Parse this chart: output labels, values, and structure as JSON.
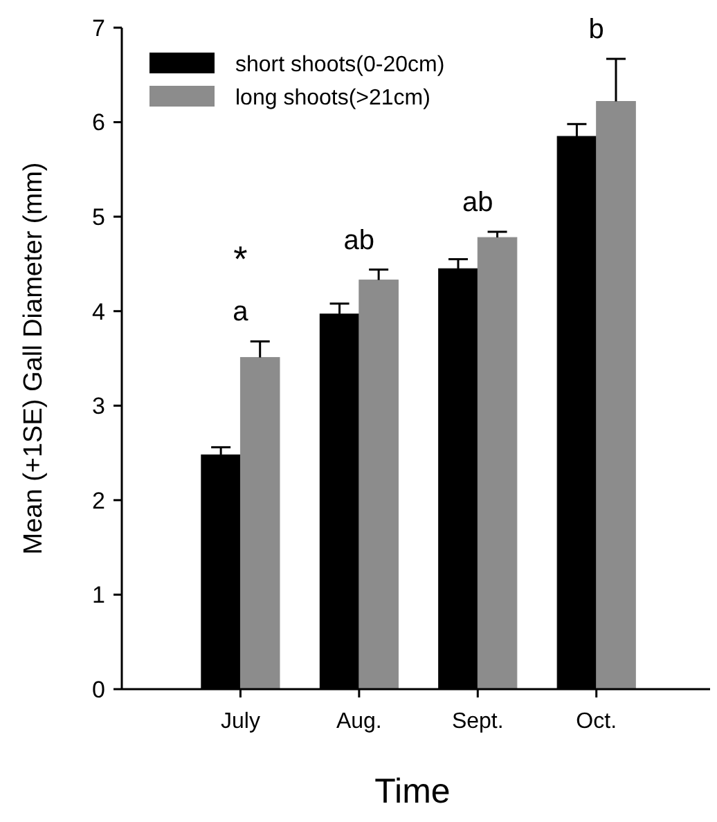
{
  "chart_data": {
    "type": "bar",
    "xlabel": "Time",
    "ylabel": "Mean (+1SE) Gall Diameter (mm)",
    "categories": [
      "July",
      "Aug.",
      "Sept.",
      "Oct."
    ],
    "series": [
      {
        "name": "short shoots(0-20cm)",
        "color": "#000000",
        "values": [
          2.48,
          3.97,
          4.45,
          5.85
        ],
        "errors": [
          [
            2.48,
            2.56
          ],
          [
            3.97,
            4.08
          ],
          [
            4.45,
            4.55
          ],
          [
            5.85,
            5.98
          ]
        ]
      },
      {
        "name": "long shoots(>21cm)",
        "color": "#8c8c8c",
        "values": [
          3.51,
          4.33,
          4.78,
          6.22
        ],
        "errors": [
          [
            3.51,
            3.68
          ],
          [
            4.33,
            4.44
          ],
          [
            4.78,
            4.84
          ],
          [
            6.22,
            6.67
          ]
        ]
      }
    ],
    "annotations": [
      "*",
      "a",
      "ab",
      "ab",
      "b"
    ],
    "ylim": [
      0,
      7
    ],
    "yticks": [
      0,
      1,
      2,
      3,
      4,
      5,
      6,
      7
    ],
    "legend": "top left",
    "grid": false
  }
}
